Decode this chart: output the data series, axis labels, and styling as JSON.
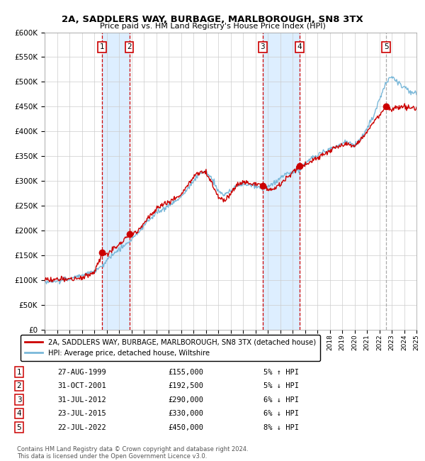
{
  "title": "2A, SADDLERS WAY, BURBAGE, MARLBOROUGH, SN8 3TX",
  "subtitle": "Price paid vs. HM Land Registry's House Price Index (HPI)",
  "xlim": [
    1995,
    2025
  ],
  "ylim": [
    0,
    600000
  ],
  "yticks": [
    0,
    50000,
    100000,
    150000,
    200000,
    250000,
    300000,
    350000,
    400000,
    450000,
    500000,
    550000,
    600000
  ],
  "ytick_labels": [
    "£0",
    "£50K",
    "£100K",
    "£150K",
    "£200K",
    "£250K",
    "£300K",
    "£350K",
    "£400K",
    "£450K",
    "£500K",
    "£550K",
    "£600K"
  ],
  "xticks": [
    1995,
    1996,
    1997,
    1998,
    1999,
    2000,
    2001,
    2002,
    2003,
    2004,
    2005,
    2006,
    2007,
    2008,
    2009,
    2010,
    2011,
    2012,
    2013,
    2014,
    2015,
    2016,
    2017,
    2018,
    2019,
    2020,
    2021,
    2022,
    2023,
    2024,
    2025
  ],
  "hpi_color": "#7ab8d9",
  "price_color": "#cc0000",
  "sale_marker_color": "#cc0000",
  "shade_color": "#ddeeff",
  "vline_color_red": "#cc0000",
  "vline_color_grey": "#aaaaaa",
  "grid_color": "#cccccc",
  "bg_color": "#ffffff",
  "legend_line1": "2A, SADDLERS WAY, BURBAGE, MARLBOROUGH, SN8 3TX (detached house)",
  "legend_line2": "HPI: Average price, detached house, Wiltshire",
  "transactions": [
    {
      "num": 1,
      "date": "27-AUG-1999",
      "year": 1999.65,
      "price": 155000,
      "pct": "5%",
      "dir": "↑"
    },
    {
      "num": 2,
      "date": "31-OCT-2001",
      "year": 2001.83,
      "price": 192500,
      "pct": "5%",
      "dir": "↓"
    },
    {
      "num": 3,
      "date": "31-JUL-2012",
      "year": 2012.58,
      "price": 290000,
      "pct": "6%",
      "dir": "↓"
    },
    {
      "num": 4,
      "date": "23-JUL-2015",
      "year": 2015.56,
      "price": 330000,
      "pct": "6%",
      "dir": "↓"
    },
    {
      "num": 5,
      "date": "22-JUL-2022",
      "year": 2022.56,
      "price": 450000,
      "pct": "8%",
      "dir": "↓"
    }
  ],
  "footer": "Contains HM Land Registry data © Crown copyright and database right 2024.\nThis data is licensed under the Open Government Licence v3.0.",
  "table_rows": [
    [
      "1",
      "27-AUG-1999",
      "£155,000",
      "5% ↑ HPI"
    ],
    [
      "2",
      "31-OCT-2001",
      "£192,500",
      "5% ↓ HPI"
    ],
    [
      "3",
      "31-JUL-2012",
      "£290,000",
      "6% ↓ HPI"
    ],
    [
      "4",
      "23-JUL-2015",
      "£330,000",
      "6% ↓ HPI"
    ],
    [
      "5",
      "22-JUL-2022",
      "£450,000",
      "8% ↓ HPI"
    ]
  ]
}
